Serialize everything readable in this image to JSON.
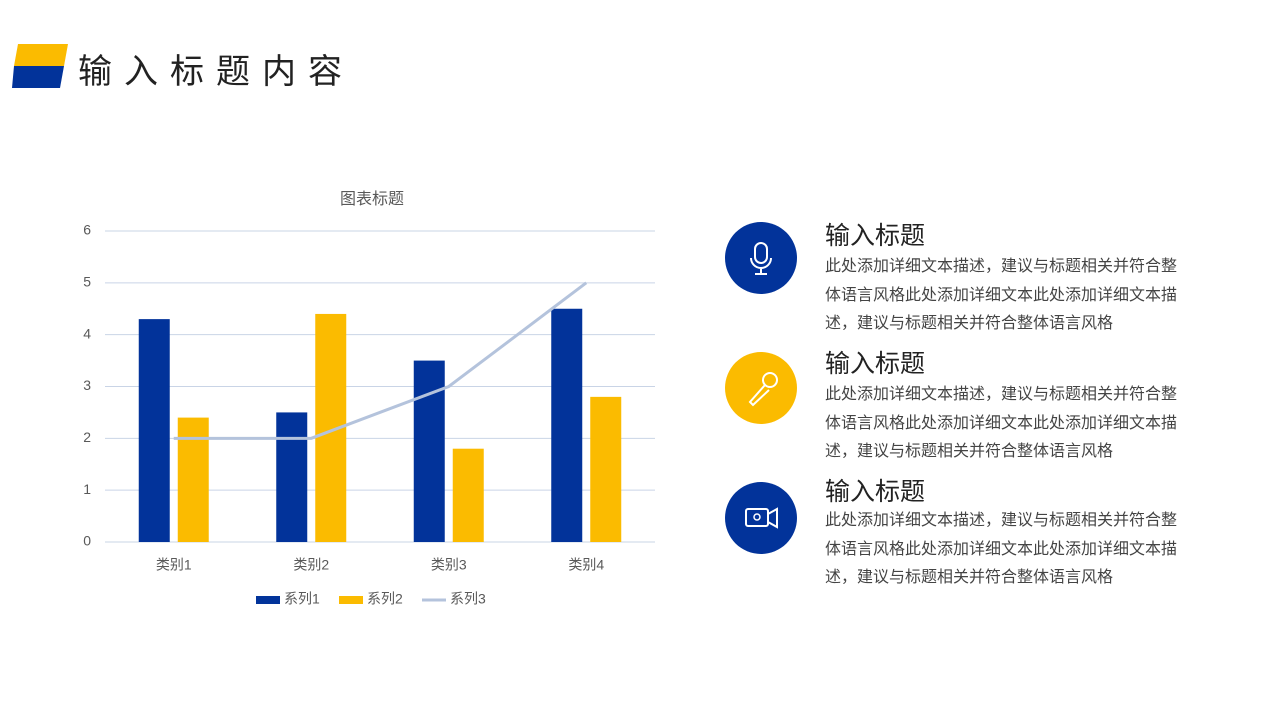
{
  "header": {
    "title": "输入标题内容"
  },
  "chart_data": {
    "type": "bar",
    "title": "图表标题",
    "categories": [
      "类别1",
      "类别2",
      "类别3",
      "类别4"
    ],
    "series": [
      {
        "name": "系列1",
        "color": "#02339a",
        "values": [
          4.3,
          2.5,
          3.5,
          4.5
        ]
      },
      {
        "name": "系列2",
        "color": "#fbbb00",
        "values": [
          2.4,
          4.4,
          1.8,
          2.8
        ]
      },
      {
        "name": "系列3",
        "color": "#b4c3dc",
        "type": "line",
        "values": [
          2,
          2,
          3,
          5
        ]
      }
    ],
    "ylim": [
      0,
      6
    ],
    "yticks": [
      0,
      1,
      2,
      3,
      4,
      5,
      6
    ],
    "grid": true,
    "legend": "bottom"
  },
  "items": [
    {
      "title": "输入标题",
      "text": "此处添加详细文本描述，建议与标题相关并符合整体语言风格此处添加详细文本此处添加详细文本描述，建议与标题相关并符合整体语言风格"
    },
    {
      "title": "输入标题",
      "text": "此处添加详细文本描述，建议与标题相关并符合整体语言风格此处添加详细文本此处添加详细文本描述，建议与标题相关并符合整体语言风格"
    },
    {
      "title": "输入标题",
      "text": "此处添加详细文本描述，建议与标题相关并符合整体语言风格此处添加详细文本此处添加详细文本描述，建议与标题相关并符合整体语言风格"
    }
  ]
}
